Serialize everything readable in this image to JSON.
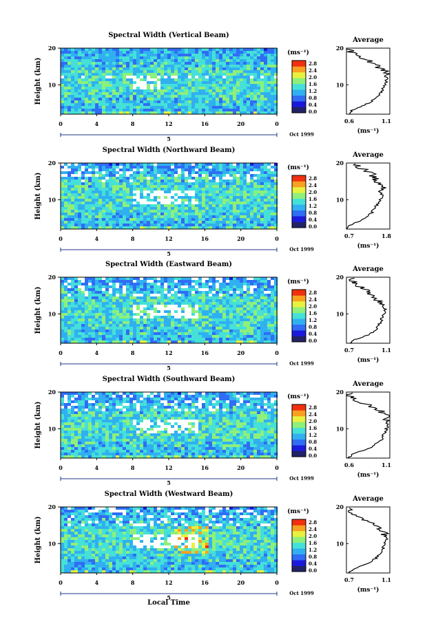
{
  "panels": [
    {
      "title": "Spectral Width (Vertical Beam)",
      "avg_title": "Average",
      "avg_min_label": "0.6",
      "avg_max_label": "1.1"
    },
    {
      "title": "Spectral Width (Northward Beam)",
      "avg_title": "Average",
      "avg_min_label": "0.7",
      "avg_max_label": "1.8"
    },
    {
      "title": "Spectral Width (Eastward Beam)",
      "avg_title": "Average",
      "avg_min_label": "0.7",
      "avg_max_label": "1.1"
    },
    {
      "title": "Spectral Width (Southward Beam)",
      "avg_title": "Average",
      "avg_min_label": "0.6",
      "avg_max_label": "1.1"
    },
    {
      "title": "Spectral Width (Westward Beam)",
      "avg_title": "Average",
      "avg_min_label": "0.7",
      "avg_max_label": "1.1"
    }
  ],
  "shared": {
    "ylabel": "Height (km)",
    "unit_label": "(ms⁻¹)",
    "date_label": "Oct 1999",
    "day_label": "5",
    "xlabel": "Local Time",
    "x_ticks": [
      "0",
      "4",
      "8",
      "12",
      "16",
      "20",
      "0"
    ],
    "y_ticks": [
      "20",
      "10"
    ],
    "colorbar_ticks": [
      "2.8",
      "2.4",
      "2.0",
      "1.6",
      "1.2",
      "0.8",
      "0.4",
      "0.0"
    ]
  },
  "colors": {
    "scale": [
      "#222266",
      "#1a1adc",
      "#2f6df5",
      "#30b0f0",
      "#45e0d8",
      "#8ef07a",
      "#e8f040",
      "#f8a020",
      "#f03010"
    ]
  },
  "chart_data": [
    {
      "type": "heatmap",
      "title": "Spectral Width (Vertical Beam)",
      "xlabel": "",
      "ylabel": "Height (km)",
      "x_range": [
        0,
        24
      ],
      "ylim": [
        2,
        20
      ],
      "zlim": [
        0.0,
        3.0
      ],
      "z_unit": "ms-1"
    },
    {
      "type": "heatmap",
      "title": "Spectral Width (Northward Beam)",
      "xlabel": "",
      "ylabel": "Height (km)",
      "x_range": [
        0,
        24
      ],
      "ylim": [
        2,
        20
      ],
      "zlim": [
        0.0,
        3.0
      ],
      "z_unit": "ms-1"
    },
    {
      "type": "heatmap",
      "title": "Spectral Width (Eastward Beam)",
      "xlabel": "",
      "ylabel": "Height (km)",
      "x_range": [
        0,
        24
      ],
      "ylim": [
        2,
        20
      ],
      "zlim": [
        0.0,
        3.0
      ],
      "z_unit": "ms-1"
    },
    {
      "type": "heatmap",
      "title": "Spectral Width (Southward Beam)",
      "xlabel": "",
      "ylabel": "Height (km)",
      "x_range": [
        0,
        24
      ],
      "ylim": [
        2,
        20
      ],
      "zlim": [
        0.0,
        3.0
      ],
      "z_unit": "ms-1"
    },
    {
      "type": "heatmap",
      "title": "Spectral Width (Westward Beam)",
      "xlabel": "Local Time",
      "ylabel": "Height (km)",
      "x_range": [
        0,
        24
      ],
      "ylim": [
        2,
        20
      ],
      "zlim": [
        0.0,
        3.0
      ],
      "z_unit": "ms-1"
    },
    {
      "type": "line",
      "title": "Average",
      "xlim": [
        0.6,
        1.1
      ],
      "ylim": [
        2,
        20
      ],
      "x": [
        0.62,
        0.66,
        0.75,
        0.85,
        0.92,
        0.97,
        1.0,
        1.02,
        1.04,
        1.06,
        1.07,
        1.09,
        1.03,
        0.96,
        0.9,
        0.82,
        0.72,
        0.65,
        0.62
      ],
      "y": [
        2,
        3,
        4,
        5,
        6,
        7,
        8,
        9,
        10,
        11,
        12,
        13,
        14,
        15,
        16,
        17,
        18,
        19,
        20
      ]
    },
    {
      "type": "line",
      "title": "Average",
      "xlim": [
        0.7,
        1.8
      ],
      "ylim": [
        2,
        20
      ],
      "x": [
        0.72,
        0.8,
        1.0,
        1.2,
        1.3,
        1.38,
        1.44,
        1.5,
        1.55,
        1.6,
        1.58,
        1.62,
        1.55,
        1.5,
        1.4,
        1.35,
        1.2,
        1.0,
        0.85
      ],
      "y": [
        2,
        3,
        4,
        5,
        6,
        7,
        8,
        9,
        10,
        11,
        12,
        13,
        14,
        15,
        16,
        17,
        18,
        19,
        20
      ]
    },
    {
      "type": "line",
      "title": "Average",
      "xlim": [
        0.7,
        1.1
      ],
      "ylim": [
        2,
        20
      ],
      "x": [
        0.72,
        0.78,
        0.88,
        0.95,
        0.98,
        1.0,
        1.02,
        1.03,
        1.05,
        1.06,
        1.04,
        1.02,
        0.98,
        0.94,
        0.9,
        0.85,
        0.8,
        0.76,
        0.73
      ],
      "y": [
        2,
        3,
        4,
        5,
        6,
        7,
        8,
        9,
        10,
        11,
        12,
        13,
        14,
        15,
        16,
        17,
        18,
        19,
        20
      ]
    },
    {
      "type": "line",
      "title": "Average",
      "xlim": [
        0.6,
        1.1
      ],
      "ylim": [
        2,
        20
      ],
      "x": [
        0.62,
        0.66,
        0.78,
        0.88,
        0.95,
        1.0,
        1.02,
        1.05,
        1.06,
        1.07,
        1.06,
        1.08,
        1.04,
        0.98,
        0.9,
        0.8,
        0.7,
        0.64,
        0.62
      ],
      "y": [
        2,
        3,
        4,
        5,
        6,
        7,
        8,
        9,
        10,
        11,
        12,
        13,
        14,
        15,
        16,
        17,
        18,
        19,
        20
      ]
    },
    {
      "type": "line",
      "title": "Average",
      "xlim": [
        0.7,
        1.1
      ],
      "ylim": [
        2,
        20
      ],
      "x": [
        0.72,
        0.76,
        0.85,
        0.92,
        0.97,
        1.0,
        1.02,
        1.04,
        1.05,
        1.07,
        1.06,
        1.05,
        1.0,
        0.95,
        0.9,
        0.84,
        0.78,
        0.74,
        0.72
      ],
      "y": [
        2,
        3,
        4,
        5,
        6,
        7,
        8,
        9,
        10,
        11,
        12,
        13,
        14,
        15,
        16,
        17,
        18,
        19,
        20
      ]
    }
  ]
}
